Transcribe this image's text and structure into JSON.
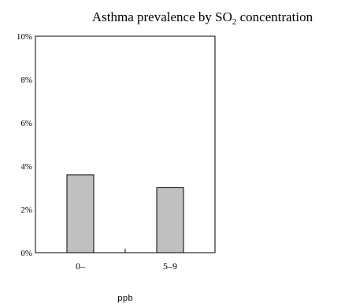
{
  "chart_data": {
    "type": "bar",
    "title": {
      "prefix": "Asthma prevalence by SO",
      "subscript": "2",
      "suffix": " concentration"
    },
    "categories": [
      "0–",
      "5–9"
    ],
    "values": [
      3.6,
      3.0
    ],
    "y_tick_labels": [
      "0%",
      "2%",
      "4%",
      "6%",
      "8%",
      "10%"
    ],
    "y_ticks": [
      0,
      2,
      4,
      6,
      8,
      10
    ],
    "ylim": [
      0,
      10
    ],
    "xlabel": "ppb",
    "ylabel": "",
    "grid": false,
    "legend": "none",
    "colors": {
      "bar_fill": "#c0c0c0",
      "bar_stroke": "#000000",
      "axis": "#000000"
    }
  }
}
